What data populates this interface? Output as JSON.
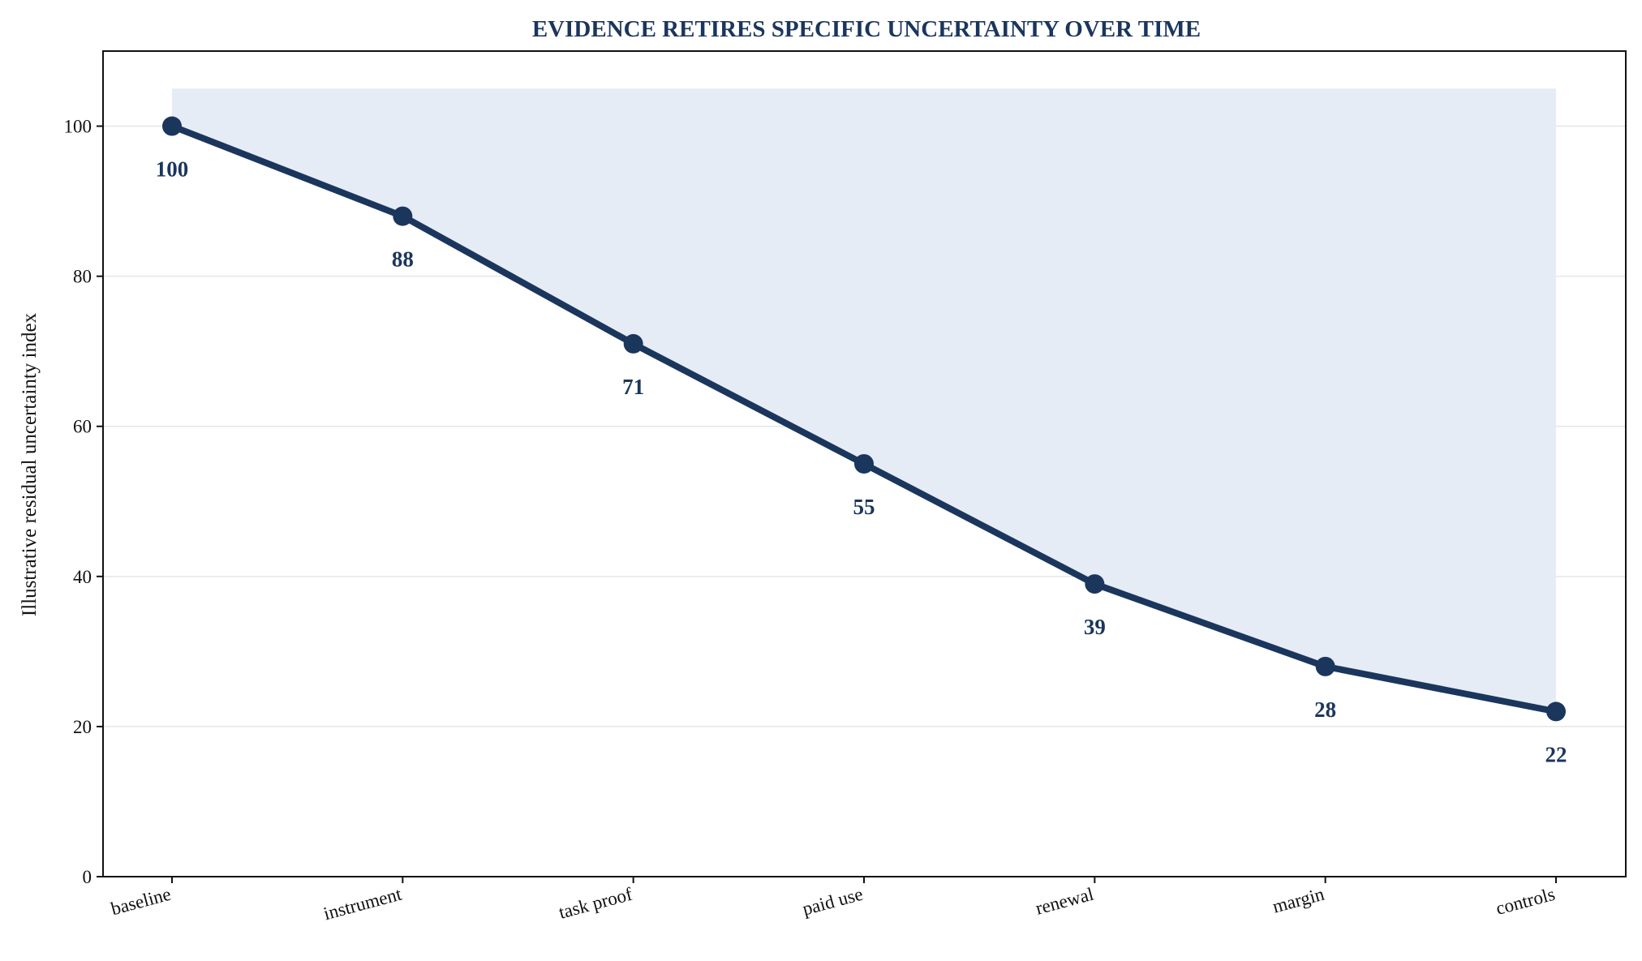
{
  "chart_data": {
    "type": "line",
    "title": "EVIDENCE RETIRES SPECIFIC UNCERTAINTY OVER TIME",
    "xlabel": "",
    "ylabel": "Illustrative residual uncertainty index",
    "categories": [
      "baseline",
      "instrument",
      "task proof",
      "paid use",
      "renewal",
      "margin",
      "controls"
    ],
    "series": [
      {
        "values": [
          100,
          88,
          71,
          55,
          39,
          28,
          22
        ]
      }
    ],
    "data_labels": [
      "100",
      "88",
      "71",
      "55",
      "39",
      "28",
      "22"
    ],
    "shaded_band_upper": 105,
    "ylim": [
      0,
      110
    ],
    "yticks": [
      0,
      20,
      40,
      60,
      80,
      100
    ],
    "grid": "horizontal",
    "legend": "none",
    "colors": {
      "line": "#1b365d",
      "fill": "#e6ecf5",
      "title": "#1b365d",
      "grid": "#e6e6e6",
      "axis": "#111111"
    }
  }
}
